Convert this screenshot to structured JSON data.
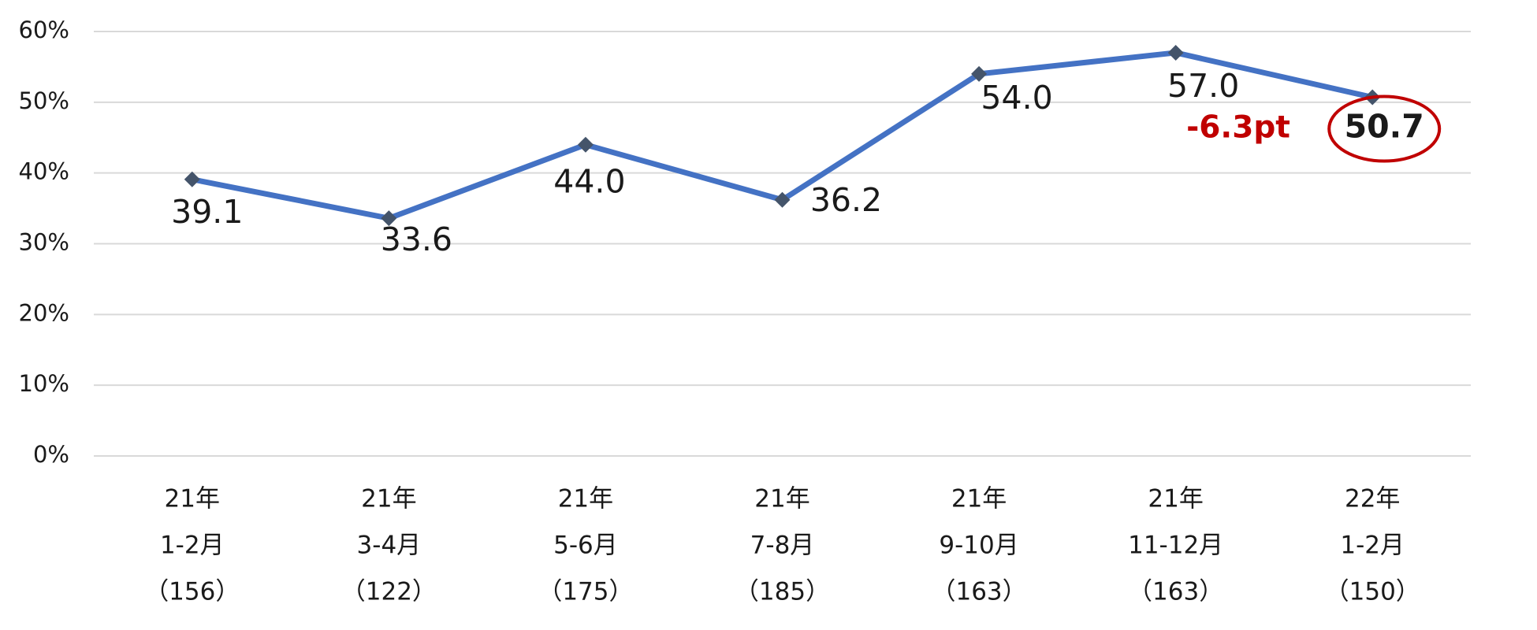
{
  "chart_data": {
    "type": "line",
    "categories": [
      [
        "21年",
        "1-2月",
        "（156）"
      ],
      [
        "21年",
        "3-4月",
        "（122）"
      ],
      [
        "21年",
        "5-6月",
        "（175）"
      ],
      [
        "21年",
        "7-8月",
        "（185）"
      ],
      [
        "21年",
        "9-10月",
        "（163）"
      ],
      [
        "21年",
        "11-12月",
        "（163）"
      ],
      [
        "22年",
        "1-2月",
        "（150）"
      ]
    ],
    "values": [
      39.1,
      33.6,
      44.0,
      36.2,
      54.0,
      57.0,
      50.7
    ],
    "value_labels": [
      "39.1",
      "33.6",
      "44.0",
      "36.2",
      "54.0",
      "57.0",
      "50.7"
    ],
    "color": "#4472c4",
    "marker_color": "#44546a",
    "ylim": [
      0,
      60
    ],
    "yticks": [
      {
        "value": 0,
        "label": "0%"
      },
      {
        "value": 10,
        "label": "10%"
      },
      {
        "value": 20,
        "label": "20%"
      },
      {
        "value": 30,
        "label": "30%"
      },
      {
        "value": 40,
        "label": "40%"
      },
      {
        "value": 50,
        "label": "50%"
      },
      {
        "value": 60,
        "label": "60%"
      }
    ],
    "grid": true,
    "annotations": [
      "-6.3pt"
    ],
    "annotation_color": "#c00000"
  }
}
